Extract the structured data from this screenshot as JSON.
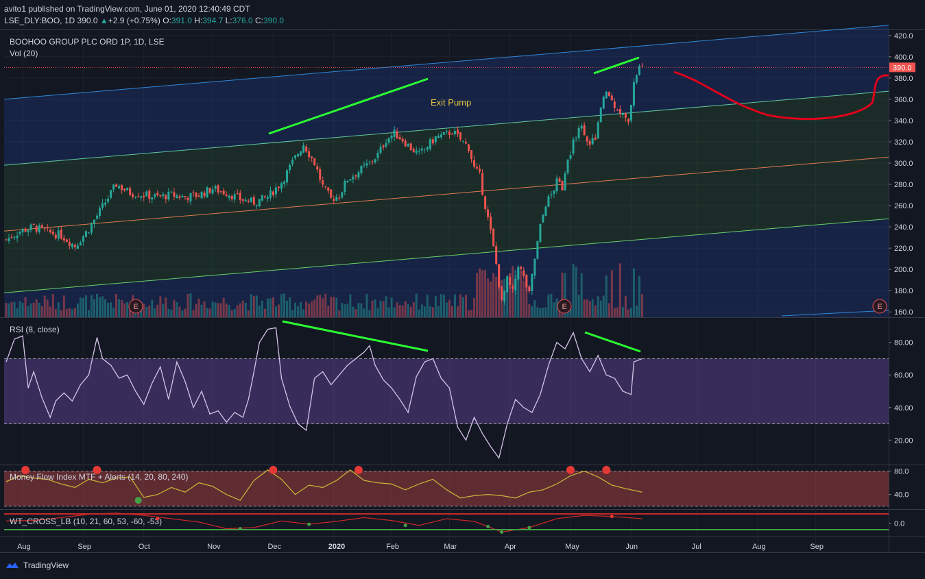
{
  "header": {
    "publish_line": "avito1 published on TradingView.com, June 01, 2020 12:40:49 CDT",
    "symbol": "LSE_DLY:BOO, 1D",
    "price": "390.0",
    "change_arrow": "▲",
    "change": "+2.9 (+0.75%)",
    "o_label": "O:",
    "o_val": "391.0",
    "h_label": "H:",
    "h_val": "394.7",
    "l_label": "L:",
    "l_val": "376.0",
    "c_label": "C:",
    "c_val": "390.0"
  },
  "footer": {
    "brand": "TradingView"
  },
  "colors": {
    "up": "#26a69a",
    "down": "#ef5350",
    "rsi": "#d5c3e8",
    "mfi": "#c6b236",
    "trend": "#2bff33",
    "drawing": "#e0001b",
    "channel": "#2f88d8"
  },
  "chart_data": [
    {
      "type": "candlestick",
      "title": "BOOHOO GROUP PLC ORD 1P, 1D, LSE",
      "subtitle": "Vol (20)",
      "x_ticks": [
        "Aug",
        "Sep",
        "Oct",
        "Nov",
        "Dec",
        "2020",
        "Feb",
        "Mar",
        "Apr",
        "May",
        "Jun",
        "Jul",
        "Aug",
        "Sep"
      ],
      "y_ticks": [
        "420.0",
        "400.0",
        "380.0",
        "360.0",
        "340.0",
        "320.0",
        "300.0",
        "280.0",
        "260.0",
        "240.0",
        "220.0",
        "200.0",
        "180.0",
        "160.0"
      ],
      "ylim": [
        155,
        425
      ],
      "last_price": "390.0",
      "annotation": "Exit Pump",
      "earnings_markers": [
        "E",
        "E",
        "E"
      ],
      "close_path": [
        [
          0,
          228
        ],
        [
          5,
          236
        ],
        [
          10,
          240
        ],
        [
          15,
          235
        ],
        [
          20,
          232
        ],
        [
          25,
          222
        ],
        [
          30,
          238
        ],
        [
          40,
          280
        ],
        [
          45,
          272
        ],
        [
          50,
          270
        ],
        [
          55,
          268
        ],
        [
          60,
          270
        ],
        [
          65,
          268
        ],
        [
          70,
          270
        ],
        [
          75,
          276
        ],
        [
          80,
          272
        ],
        [
          85,
          266
        ],
        [
          90,
          263
        ],
        [
          95,
          268
        ],
        [
          100,
          282
        ],
        [
          105,
          305
        ],
        [
          108,
          318
        ],
        [
          112,
          300
        ],
        [
          115,
          278
        ],
        [
          118,
          266
        ],
        [
          121,
          270
        ],
        [
          124,
          285
        ],
        [
          128,
          292
        ],
        [
          132,
          300
        ],
        [
          135,
          308
        ],
        [
          138,
          322
        ],
        [
          141,
          328
        ],
        [
          144,
          322
        ],
        [
          147,
          314
        ],
        [
          150,
          308
        ],
        [
          153,
          316
        ],
        [
          156,
          324
        ],
        [
          159,
          326
        ],
        [
          162,
          330
        ],
        [
          165,
          322
        ],
        [
          168,
          315
        ],
        [
          170,
          295
        ],
        [
          172,
          288
        ],
        [
          174,
          260
        ],
        [
          176,
          235
        ],
        [
          178,
          205
        ],
        [
          180,
          168
        ],
        [
          182,
          190
        ],
        [
          184,
          178
        ],
        [
          186,
          205
        ],
        [
          188,
          192
        ],
        [
          190,
          176
        ],
        [
          192,
          210
        ],
        [
          194,
          240
        ],
        [
          196,
          262
        ],
        [
          198,
          270
        ],
        [
          200,
          282
        ],
        [
          202,
          278
        ],
        [
          204,
          300
        ],
        [
          206,
          320
        ],
        [
          208,
          335
        ],
        [
          210,
          330
        ],
        [
          212,
          315
        ],
        [
          214,
          325
        ],
        [
          216,
          350
        ],
        [
          218,
          368
        ],
        [
          220,
          358
        ],
        [
          222,
          352
        ],
        [
          224,
          345
        ],
        [
          226,
          336
        ],
        [
          228,
          378
        ],
        [
          230,
          390
        ]
      ]
    },
    {
      "type": "line",
      "title": "RSI (8, close)",
      "y_ticks": [
        "80.00",
        "60.00",
        "40.00",
        "20.00"
      ],
      "ylim": [
        5,
        95
      ],
      "band": [
        30,
        70
      ],
      "values": [
        [
          0,
          68
        ],
        [
          3,
          82
        ],
        [
          6,
          84
        ],
        [
          8,
          52
        ],
        [
          10,
          62
        ],
        [
          13,
          46
        ],
        [
          16,
          34
        ],
        [
          18,
          44
        ],
        [
          21,
          49
        ],
        [
          24,
          44
        ],
        [
          27,
          54
        ],
        [
          30,
          60
        ],
        [
          33,
          83
        ],
        [
          35,
          70
        ],
        [
          38,
          66
        ],
        [
          41,
          58
        ],
        [
          44,
          60
        ],
        [
          47,
          50
        ],
        [
          50,
          42
        ],
        [
          53,
          55
        ],
        [
          56,
          65
        ],
        [
          59,
          45
        ],
        [
          62,
          68
        ],
        [
          65,
          56
        ],
        [
          68,
          40
        ],
        [
          71,
          50
        ],
        [
          74,
          36
        ],
        [
          77,
          38
        ],
        [
          80,
          31
        ],
        [
          83,
          37
        ],
        [
          86,
          34
        ],
        [
          88,
          45
        ],
        [
          90,
          62
        ],
        [
          92,
          80
        ],
        [
          95,
          88
        ],
        [
          98,
          89
        ],
        [
          100,
          58
        ],
        [
          103,
          41
        ],
        [
          106,
          30
        ],
        [
          109,
          26
        ],
        [
          112,
          58
        ],
        [
          115,
          62
        ],
        [
          118,
          54
        ],
        [
          121,
          60
        ],
        [
          124,
          66
        ],
        [
          127,
          70
        ],
        [
          130,
          74
        ],
        [
          132,
          78
        ],
        [
          134,
          66
        ],
        [
          137,
          57
        ],
        [
          140,
          52
        ],
        [
          143,
          45
        ],
        [
          146,
          37
        ],
        [
          149,
          59
        ],
        [
          152,
          68
        ],
        [
          155,
          70
        ],
        [
          158,
          58
        ],
        [
          161,
          52
        ],
        [
          164,
          28
        ],
        [
          167,
          20
        ],
        [
          170,
          34
        ],
        [
          173,
          24
        ],
        [
          176,
          16
        ],
        [
          179,
          9
        ],
        [
          182,
          30
        ],
        [
          185,
          45
        ],
        [
          188,
          40
        ],
        [
          191,
          37
        ],
        [
          194,
          48
        ],
        [
          197,
          66
        ],
        [
          200,
          80
        ],
        [
          203,
          76
        ],
        [
          206,
          86
        ],
        [
          209,
          70
        ],
        [
          212,
          62
        ],
        [
          215,
          72
        ],
        [
          218,
          60
        ],
        [
          221,
          58
        ],
        [
          224,
          50
        ],
        [
          227,
          48
        ],
        [
          228,
          68
        ],
        [
          231,
          70
        ]
      ]
    },
    {
      "type": "line",
      "title": "Money Flow Index MTF + Alerts (14, 20, 80, 240)",
      "y_ticks": [
        "80.0",
        "40.0"
      ],
      "ylim": [
        15,
        90
      ],
      "band": [
        20,
        80
      ],
      "values": [
        [
          0,
          62
        ],
        [
          5,
          72
        ],
        [
          10,
          68
        ],
        [
          15,
          66
        ],
        [
          20,
          58
        ],
        [
          25,
          52
        ],
        [
          30,
          66
        ],
        [
          35,
          60
        ],
        [
          40,
          68
        ],
        [
          45,
          70
        ],
        [
          50,
          35
        ],
        [
          55,
          40
        ],
        [
          60,
          52
        ],
        [
          65,
          44
        ],
        [
          70,
          60
        ],
        [
          75,
          54
        ],
        [
          80,
          40
        ],
        [
          85,
          30
        ],
        [
          90,
          64
        ],
        [
          95,
          82
        ],
        [
          100,
          66
        ],
        [
          105,
          40
        ],
        [
          110,
          56
        ],
        [
          115,
          52
        ],
        [
          120,
          64
        ],
        [
          125,
          82
        ],
        [
          130,
          64
        ],
        [
          135,
          60
        ],
        [
          140,
          58
        ],
        [
          145,
          48
        ],
        [
          150,
          58
        ],
        [
          155,
          66
        ],
        [
          160,
          48
        ],
        [
          165,
          34
        ],
        [
          170,
          38
        ],
        [
          175,
          40
        ],
        [
          180,
          38
        ],
        [
          185,
          34
        ],
        [
          190,
          44
        ],
        [
          195,
          48
        ],
        [
          200,
          58
        ],
        [
          205,
          72
        ],
        [
          210,
          80
        ],
        [
          215,
          70
        ],
        [
          220,
          56
        ],
        [
          225,
          50
        ],
        [
          231,
          44
        ]
      ]
    },
    {
      "type": "line",
      "title": "WT_CROSS_LB (10, 21, 60, 53, -60, -53)",
      "y_ticks": [
        "0.0"
      ],
      "ylim": [
        -60,
        60
      ],
      "values": [
        [
          0,
          10
        ],
        [
          10,
          12
        ],
        [
          20,
          25
        ],
        [
          30,
          40
        ],
        [
          40,
          45
        ],
        [
          50,
          35
        ],
        [
          60,
          20
        ],
        [
          70,
          5
        ],
        [
          80,
          -25
        ],
        [
          90,
          -20
        ],
        [
          100,
          10
        ],
        [
          110,
          -5
        ],
        [
          120,
          8
        ],
        [
          130,
          25
        ],
        [
          140,
          12
        ],
        [
          150,
          -10
        ],
        [
          160,
          20
        ],
        [
          170,
          8
        ],
        [
          175,
          -15
        ],
        [
          180,
          -40
        ],
        [
          185,
          -30
        ],
        [
          190,
          -20
        ],
        [
          200,
          20
        ],
        [
          210,
          35
        ],
        [
          220,
          30
        ],
        [
          231,
          20
        ]
      ]
    }
  ]
}
